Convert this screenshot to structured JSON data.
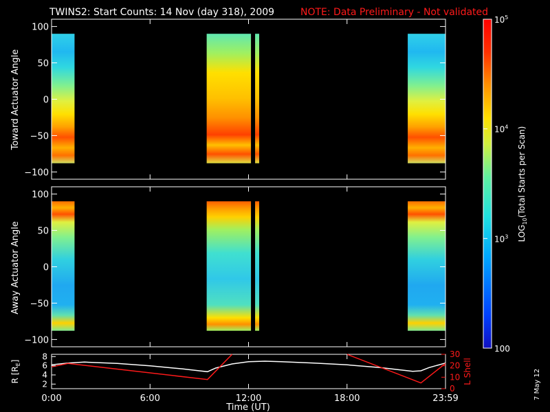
{
  "title": {
    "main": "TWINS2: Start Counts: 14 Nov (day 318), 2009",
    "note": "NOTE: Data Preliminary - Not validated",
    "note_color": "#ff1a1a"
  },
  "stamp": "7 May 12",
  "chart_data": [
    {
      "type": "heatmap",
      "ylabel": "Toward Actuator Angle",
      "ylim": [
        -110,
        110
      ],
      "yticks": [
        "100",
        "50",
        "0",
        "-50",
        "-100"
      ],
      "y_range_covered": [
        -88,
        90
      ],
      "data_intervals_ut_hours": [
        [
          0.0,
          1.4
        ],
        [
          9.45,
          12.15
        ],
        [
          12.4,
          12.65
        ],
        [
          21.7,
          24.0
        ]
      ],
      "profile": "peak near -50 deg (~2e4), ~1e3 near +70 deg"
    },
    {
      "type": "heatmap",
      "ylabel": "Away Actuator Angle",
      "ylim": [
        -110,
        110
      ],
      "yticks": [
        "100",
        "50",
        "0",
        "-50",
        "-100"
      ],
      "y_range_covered": [
        -88,
        90
      ],
      "data_intervals_ut_hours": [
        [
          0.0,
          1.4
        ],
        [
          9.45,
          12.15
        ],
        [
          12.4,
          12.65
        ],
        [
          21.7,
          24.0
        ]
      ],
      "profile": "peak near +75 and -80 deg (~2e4), ~1e3 near -50 deg"
    },
    {
      "type": "line",
      "xlabel": "Time (UT)",
      "xticks": [
        "0:00",
        "6:00",
        "12:00",
        "18:00",
        "23:59"
      ],
      "xlim_hours": [
        0,
        24
      ],
      "left_axis": {
        "label": "R [RE]",
        "ticks": [
          "8",
          "6",
          "4",
          "2"
        ],
        "ylim": [
          1,
          8.5
        ]
      },
      "right_axis": {
        "label": "L Shell",
        "ticks": [
          "30",
          "20",
          "10",
          "0"
        ],
        "ylim": [
          0,
          30
        ],
        "color": "#ff1a1a"
      },
      "series": [
        {
          "name": "R [RE]",
          "color": "#ffffff",
          "x": [
            0,
            1,
            2,
            4,
            6,
            8,
            9,
            9.5,
            10,
            11,
            12,
            13,
            14,
            16,
            18,
            20,
            21,
            22,
            22.5,
            23,
            24
          ],
          "y": [
            6.2,
            6.6,
            6.8,
            6.5,
            6.0,
            5.3,
            4.9,
            4.7,
            5.5,
            6.4,
            6.9,
            7.0,
            6.9,
            6.6,
            6.2,
            5.6,
            5.2,
            4.8,
            4.9,
            5.6,
            6.6
          ]
        },
        {
          "name": "L Shell",
          "color": "#ff1a1a",
          "x": [
            0,
            1.0,
            9.5,
            11.0,
            11.0,
            18.0,
            18.0,
            22.5,
            24.0
          ],
          "y": [
            19,
            22,
            8,
            30,
            null,
            30,
            30,
            5,
            22
          ]
        }
      ]
    }
  ],
  "colorbar": {
    "label": "LOG10(Total Starts per Scan)",
    "ticks": [
      {
        "label": "10",
        "sup": "5",
        "value": 100000
      },
      {
        "label": "10",
        "sup": "4",
        "value": 10000
      },
      {
        "label": "10",
        "sup": "3",
        "value": 1000
      },
      {
        "label": "100",
        "sup": "",
        "value": 100
      }
    ],
    "range": [
      100,
      100000
    ],
    "colors": [
      "#1010c0",
      "#0050ff",
      "#00b0ff",
      "#20e0e0",
      "#40e8b0",
      "#a0f060",
      "#ffff00",
      "#ffb000",
      "#ff6000",
      "#ff2000",
      "#ff0000"
    ]
  }
}
